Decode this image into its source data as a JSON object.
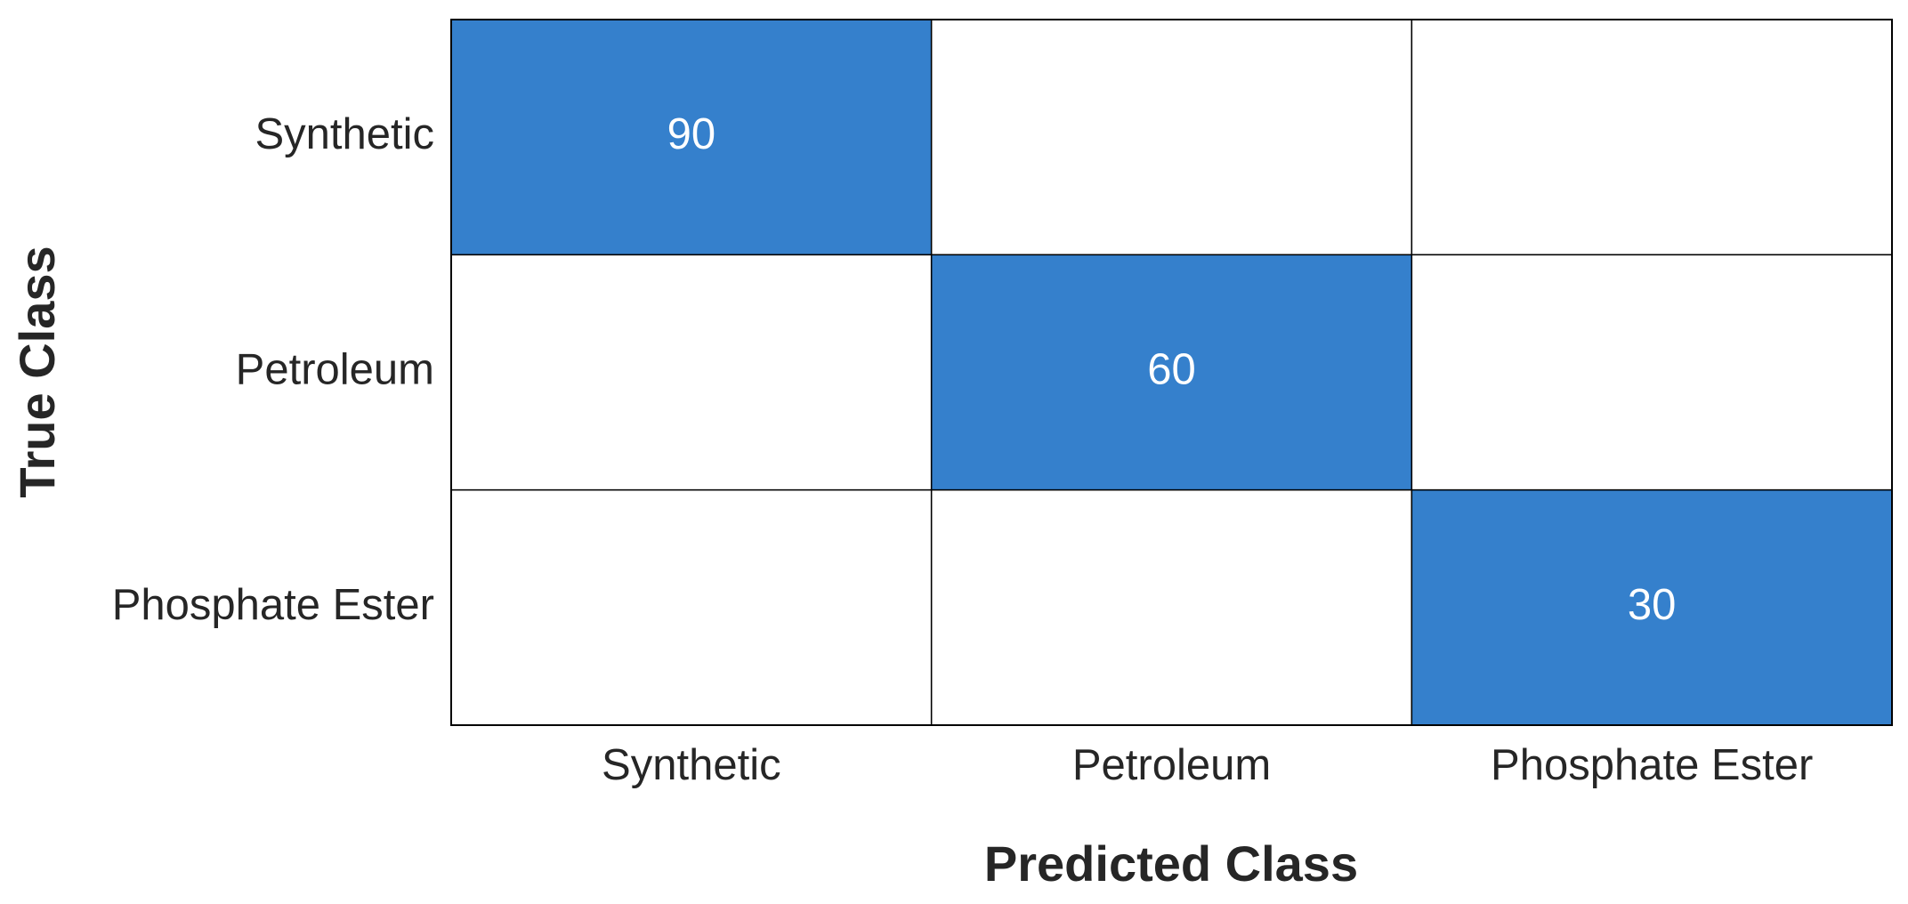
{
  "chart_data": {
    "type": "heatmap",
    "x_label": "Predicted Class",
    "y_label": "True Class",
    "x_categories": [
      "Synthetic",
      "Petroleum",
      "Phosphate Ester"
    ],
    "y_categories": [
      "Synthetic",
      "Petroleum",
      "Phosphate Ester"
    ],
    "values": [
      [
        90,
        null,
        null
      ],
      [
        null,
        60,
        null
      ],
      [
        null,
        null,
        30
      ]
    ],
    "color": "#3580cc"
  }
}
